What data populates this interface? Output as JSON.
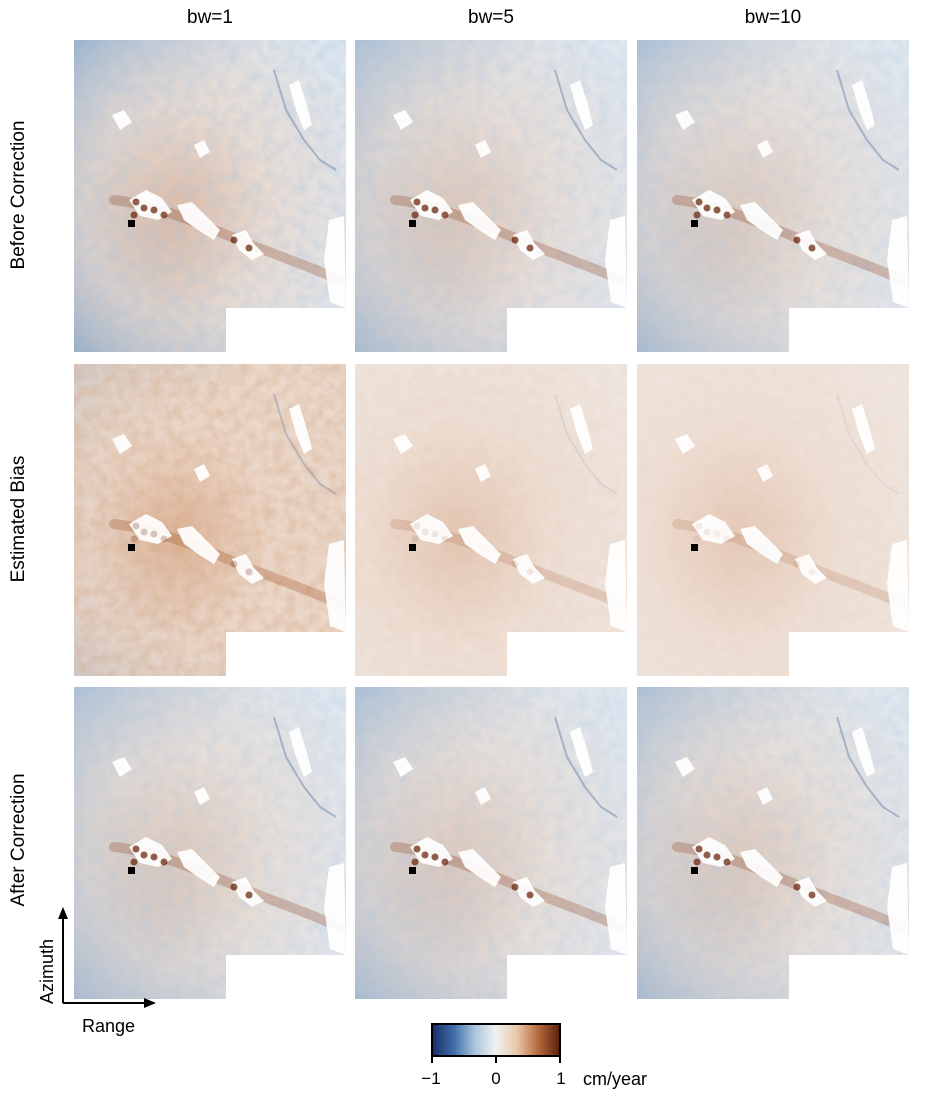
{
  "columns": [
    {
      "label": "bw=1"
    },
    {
      "label": "bw=5"
    },
    {
      "label": "bw=10"
    }
  ],
  "rows": [
    {
      "label": "Before Correction",
      "strength": [
        1.0,
        0.62,
        0.5
      ],
      "base": [
        0.0,
        0.0,
        0.0
      ]
    },
    {
      "label": "Estimated  Bias",
      "strength": [
        1.0,
        0.38,
        0.28
      ],
      "base": [
        0.35,
        0.15,
        0.12
      ]
    },
    {
      "label": "After Correction",
      "strength": [
        0.55,
        0.55,
        0.55
      ],
      "base": [
        0.0,
        0.0,
        0.0
      ]
    }
  ],
  "axes": {
    "vertical_label": "Azimuth",
    "horizontal_label": "Range"
  },
  "colorbar": {
    "tick_labels": [
      "−1",
      "0",
      "1"
    ],
    "unit": "cm/year",
    "colors": [
      "#1b2f6b",
      "#3f6fa8",
      "#a9c6df",
      "#f1f1f1",
      "#e9c7a9",
      "#b76b3d",
      "#5c220e"
    ]
  }
}
